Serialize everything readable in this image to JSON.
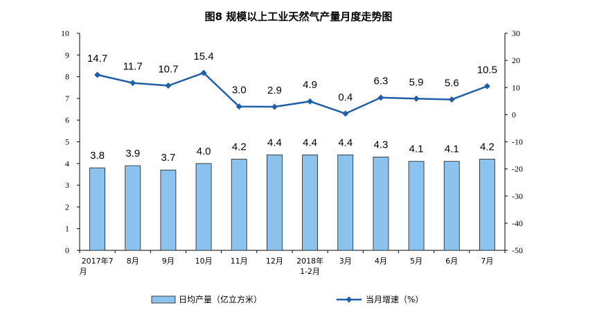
{
  "chart_data": {
    "type": "bar",
    "title": "图8  规模以上工业天然气产量月度走势图",
    "categories": [
      [
        "2017年7",
        "月"
      ],
      [
        "8月"
      ],
      [
        "9月"
      ],
      [
        "10月"
      ],
      [
        "11月"
      ],
      [
        "12月"
      ],
      [
        "2018年",
        "1-2月"
      ],
      [
        "3月"
      ],
      [
        "4月"
      ],
      [
        "5月"
      ],
      [
        "6月"
      ],
      [
        "7月"
      ]
    ],
    "series": [
      {
        "name": "日均产量（亿立方米）",
        "type": "bar",
        "axis": "left",
        "values": [
          3.8,
          3.9,
          3.7,
          4.0,
          4.2,
          4.4,
          4.4,
          4.4,
          4.3,
          4.1,
          4.1,
          4.2
        ],
        "labels": [
          "3.8",
          "3.9",
          "3.7",
          "4.0",
          "4.2",
          "4.4",
          "4.4",
          "4.4",
          "4.3",
          "4.1",
          "4.1",
          "4.2"
        ]
      },
      {
        "name": "当月增速（%）",
        "type": "line",
        "axis": "right",
        "values": [
          14.7,
          11.7,
          10.7,
          15.4,
          3.0,
          2.9,
          4.9,
          0.4,
          6.3,
          5.9,
          5.6,
          10.5
        ],
        "labels": [
          "14.7",
          "11.7",
          "10.7",
          "15.4",
          "3.0",
          "2.9",
          "4.9",
          "0.4",
          "6.3",
          "5.9",
          "5.6",
          "10.5"
        ]
      }
    ],
    "y_left": {
      "range": [
        0,
        10
      ],
      "ticks": [
        "0",
        "1",
        "2",
        "3",
        "4",
        "5",
        "6",
        "7",
        "8",
        "9",
        "10"
      ]
    },
    "y_right": {
      "range": [
        -50,
        30
      ],
      "ticks": [
        "-50",
        "-40",
        "-30",
        "-20",
        "-10",
        "0",
        "10",
        "20",
        "30"
      ]
    },
    "grid": false,
    "legend_position": "bottom",
    "colors": {
      "bar_fill": "#8cc3ee",
      "bar_stroke": "#1a1a1a",
      "line": "#1f5fa8",
      "axis": "#000000"
    }
  }
}
